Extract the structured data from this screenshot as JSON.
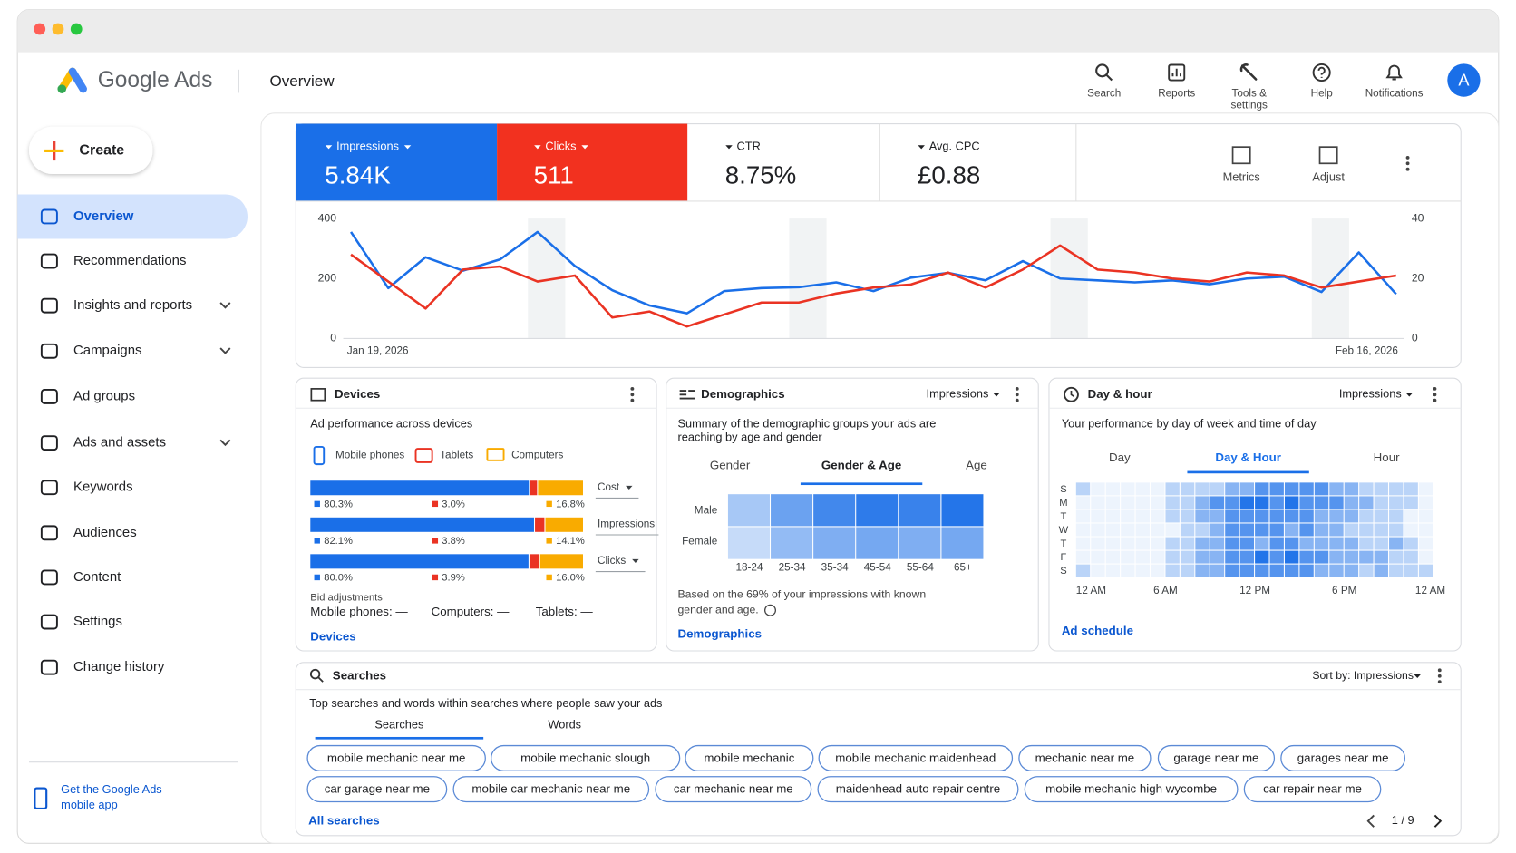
{
  "header": {
    "product": "Google Ads",
    "page_title": "Overview",
    "actions": [
      {
        "lines": [
          "Search"
        ]
      },
      {
        "lines": [
          "Reports"
        ]
      },
      {
        "lines": [
          "Tools &",
          "settings"
        ]
      },
      {
        "lines": [
          "Help"
        ]
      },
      {
        "lines": [
          "Notifications"
        ]
      }
    ],
    "avatar": "A"
  },
  "sidebar": {
    "create": "Create",
    "nav": [
      {
        "label": "Overview"
      },
      {
        "label": "Recommendations"
      },
      {
        "label": "Insights and reports"
      },
      {
        "label": "Campaigns"
      },
      {
        "label": "Ad groups"
      },
      {
        "label": "Ads and assets"
      },
      {
        "label": "Keywords"
      },
      {
        "label": "Audiences"
      },
      {
        "label": "Content"
      },
      {
        "label": "Settings"
      },
      {
        "label": "Change history"
      }
    ],
    "selected": 0,
    "app_promo": [
      "Get the Google Ads",
      "mobile app"
    ]
  },
  "kpis": [
    {
      "label": "Impressions",
      "value": "5.84K",
      "color": "#1a6fe8"
    },
    {
      "label": "Clicks",
      "value": "511",
      "color": "#f2311f"
    },
    {
      "label": "CTR",
      "value": "8.75%"
    },
    {
      "label": "Avg. CPC",
      "value": "£0.88"
    }
  ],
  "kpi_tools": [
    "Metrics",
    "Adjust"
  ],
  "performance_chart": {
    "type": "line",
    "categories": [
      "Jan 19, 2026",
      null,
      null,
      null,
      null,
      null,
      null,
      null,
      null,
      null,
      null,
      null,
      null,
      null,
      null,
      null,
      null,
      null,
      null,
      null,
      null,
      null,
      null,
      null,
      null,
      null,
      null,
      null,
      "Feb 16, 2026"
    ],
    "series": [
      {
        "color": "#1a6fe8",
        "values": [
          355,
          168,
          271,
          226,
          264,
          355,
          242,
          161,
          110,
          84,
          158,
          168,
          171,
          187,
          158,
          203,
          219,
          194,
          258,
          200,
          194,
          187,
          194,
          181,
          200,
          206,
          155,
          287,
          148
        ]
      },
      {
        "color": "#ea3323",
        "axis": "y2",
        "values": [
          28,
          19,
          10,
          23,
          24,
          19,
          21,
          7,
          9,
          4,
          8,
          12,
          12,
          15,
          17,
          18,
          22,
          17,
          23,
          31,
          23,
          22,
          20,
          19,
          22,
          21,
          17,
          19,
          21
        ]
      }
    ],
    "ylim": [
      0,
      400
    ],
    "yticks": [
      0,
      200,
      400
    ],
    "y2lim": [
      0,
      40
    ],
    "y2ticks": [
      0,
      20,
      40
    ]
  },
  "devices": {
    "title": "Devices",
    "subtitle": "Ad performance across devices",
    "legend": [
      "Mobile phones",
      "Tablets",
      "Computers"
    ],
    "colors": [
      "#1a6fe8",
      "#ea3323",
      "#f9ab00"
    ],
    "rows": [
      {
        "metric": "Cost",
        "values": [
          80.3,
          3.0,
          16.8
        ],
        "value_labels": [
          "80.3%",
          "3.0%",
          "16.8%"
        ]
      },
      {
        "metric": "Impressions",
        "values": [
          82.1,
          3.8,
          14.1
        ],
        "value_labels": [
          "82.1%",
          "3.8%",
          "14.1%"
        ]
      },
      {
        "metric": "Clicks",
        "values": [
          80.0,
          3.9,
          16.0
        ],
        "value_labels": [
          "80.0%",
          "3.9%",
          "16.0%"
        ]
      }
    ],
    "bid_adjustments": {
      "title": "Bid adjustments",
      "items": [
        "Mobile phones: —",
        "Computers: —",
        "Tablets: —"
      ]
    },
    "link": "Devices"
  },
  "demographics": {
    "title": "Demographics",
    "metric": "Impressions",
    "summary": [
      "Summary of the demographic groups your ads are",
      "reaching by age and gender"
    ],
    "tabs": [
      "Gender",
      "Gender & Age",
      "Age"
    ],
    "selected_tab": 1,
    "rows": [
      "Male",
      "Female"
    ],
    "columns": [
      "18-24",
      "25-34",
      "35-34",
      "45-54",
      "55-64",
      "65+"
    ],
    "values": [
      [
        30,
        60,
        80,
        90,
        85,
        95
      ],
      [
        15,
        40,
        50,
        55,
        50,
        55
      ]
    ],
    "note": [
      "Based on the 69% of your impressions with known",
      "gender and age."
    ],
    "link": "Demographics"
  },
  "day_hour": {
    "title": "Day & hour",
    "metric": "Impressions",
    "subtitle": "Your performance by day of week and time of day",
    "tabs": [
      "Day",
      "Day & Hour",
      "Hour"
    ],
    "selected_tab": 1,
    "days": [
      "S",
      "M",
      "T",
      "W",
      "T",
      "F",
      "S"
    ],
    "hour_labels": [
      "12 AM",
      "6 AM",
      "12 PM",
      "6 PM",
      "12 AM"
    ],
    "values": [
      [
        1,
        0,
        0,
        0,
        0,
        0,
        1,
        1,
        1,
        1,
        2,
        2,
        3,
        3,
        3,
        3,
        3,
        2,
        2,
        1,
        1,
        1,
        1,
        0
      ],
      [
        0,
        0,
        0,
        0,
        0,
        0,
        1,
        1,
        2,
        3,
        3,
        4,
        4,
        3,
        4,
        3,
        3,
        3,
        2,
        2,
        1,
        1,
        1,
        0
      ],
      [
        0,
        0,
        0,
        0,
        0,
        0,
        1,
        1,
        2,
        2,
        3,
        3,
        3,
        3,
        3,
        3,
        2,
        2,
        2,
        1,
        1,
        1,
        0,
        0
      ],
      [
        0,
        0,
        0,
        0,
        0,
        0,
        0,
        1,
        1,
        2,
        3,
        3,
        3,
        3,
        2,
        3,
        2,
        2,
        1,
        1,
        1,
        1,
        0,
        0
      ],
      [
        0,
        0,
        0,
        0,
        0,
        0,
        1,
        1,
        2,
        2,
        3,
        3,
        2,
        3,
        3,
        2,
        2,
        2,
        2,
        1,
        1,
        2,
        1,
        0
      ],
      [
        0,
        0,
        0,
        0,
        0,
        0,
        1,
        1,
        2,
        2,
        3,
        3,
        4,
        3,
        4,
        3,
        3,
        2,
        2,
        2,
        2,
        1,
        1,
        0
      ],
      [
        1,
        0,
        0,
        0,
        0,
        0,
        1,
        1,
        2,
        2,
        3,
        3,
        3,
        3,
        3,
        3,
        2,
        2,
        2,
        1,
        2,
        1,
        1,
        1
      ]
    ],
    "link": "Ad schedule"
  },
  "searches": {
    "title": "Searches",
    "sort": "Sort by: Impressions",
    "subtitle": "Top searches and words within searches where people saw your ads",
    "tabs": [
      "Searches",
      "Words"
    ],
    "selected_tab": 0,
    "chips": [
      "mobile mechanic near me",
      "mobile mechanic slough",
      "mobile mechanic",
      "mobile mechanic maidenhead",
      "mechanic near me",
      "garage near me",
      "garages near me",
      "car garage near me",
      "mobile car mechanic near me",
      "car mechanic near me",
      "maidenhead auto repair centre",
      "mobile mechanic high wycombe",
      "car repair near me"
    ],
    "link": "All searches",
    "page": "1 / 9"
  }
}
